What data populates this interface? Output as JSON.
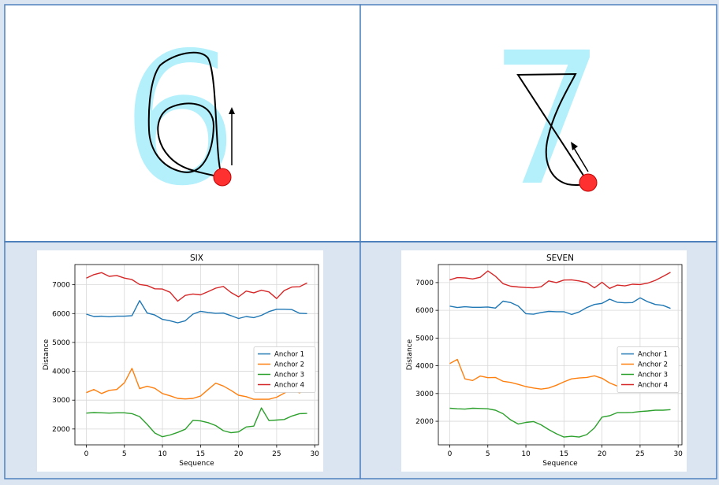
{
  "digits": [
    {
      "glyph": "6",
      "glyph_color": "#b3f0fb",
      "stroke_color": "#000000",
      "start_marker_color": "#ff3030"
    },
    {
      "glyph": "7",
      "glyph_color": "#b3f0fb",
      "stroke_color": "#000000",
      "start_marker_color": "#ff3030"
    }
  ],
  "chart_data": [
    {
      "type": "line",
      "title": "SIX",
      "xlabel": "Sequence",
      "ylabel": "Distance",
      "x": [
        0,
        1,
        2,
        3,
        4,
        5,
        6,
        7,
        8,
        9,
        10,
        11,
        12,
        13,
        14,
        15,
        16,
        17,
        18,
        19,
        20,
        21,
        22,
        23,
        24,
        25,
        26,
        27,
        28,
        29
      ],
      "xlim": [
        -1.5,
        30.5
      ],
      "ylim": [
        1450,
        7700
      ],
      "xticks": [
        0,
        5,
        10,
        15,
        20,
        25,
        30
      ],
      "yticks": [
        2000,
        3000,
        4000,
        5000,
        6000,
        7000
      ],
      "grid": true,
      "legend_position": "center-right",
      "series": [
        {
          "name": "Anchor 1",
          "color": "#1f77b4",
          "values": [
            5980,
            5900,
            5910,
            5890,
            5910,
            5910,
            5930,
            6450,
            6020,
            5950,
            5800,
            5750,
            5680,
            5750,
            5980,
            6080,
            6040,
            6010,
            6020,
            5930,
            5830,
            5900,
            5860,
            5940,
            6070,
            6150,
            6150,
            6140,
            6010,
            6000
          ]
        },
        {
          "name": "Anchor 2",
          "color": "#ff7f0e",
          "values": [
            3260,
            3370,
            3230,
            3340,
            3370,
            3600,
            4100,
            3400,
            3480,
            3410,
            3230,
            3150,
            3060,
            3040,
            3060,
            3140,
            3370,
            3590,
            3490,
            3340,
            3170,
            3120,
            3030,
            3030,
            3030,
            3100,
            3240,
            3400,
            3250,
            3430
          ]
        },
        {
          "name": "Anchor 3",
          "color": "#2ca02c",
          "values": [
            2550,
            2570,
            2560,
            2550,
            2560,
            2560,
            2530,
            2430,
            2160,
            1860,
            1730,
            1790,
            1880,
            1990,
            2300,
            2280,
            2220,
            2120,
            1940,
            1870,
            1900,
            2070,
            2100,
            2730,
            2290,
            2310,
            2330,
            2450,
            2530,
            2540
          ]
        },
        {
          "name": "Anchor 4",
          "color": "#d62728",
          "values": [
            7230,
            7350,
            7420,
            7290,
            7320,
            7230,
            7180,
            7010,
            6970,
            6860,
            6850,
            6740,
            6430,
            6630,
            6680,
            6650,
            6760,
            6880,
            6940,
            6730,
            6580,
            6780,
            6720,
            6810,
            6750,
            6520,
            6800,
            6920,
            6930,
            7060
          ]
        }
      ]
    },
    {
      "type": "line",
      "title": "SEVEN",
      "xlabel": "Sequence",
      "ylabel": "Distance",
      "x": [
        0,
        1,
        2,
        3,
        4,
        5,
        6,
        7,
        8,
        9,
        10,
        11,
        12,
        13,
        14,
        15,
        16,
        17,
        18,
        19,
        20,
        21,
        22,
        23,
        24,
        25,
        26,
        27,
        28,
        29
      ],
      "xlim": [
        -1.5,
        30.5
      ],
      "ylim": [
        1150,
        7650
      ],
      "xticks": [
        0,
        5,
        10,
        15,
        20,
        25,
        30
      ],
      "yticks": [
        2000,
        3000,
        4000,
        5000,
        6000,
        7000
      ],
      "grid": true,
      "legend_position": "center-right",
      "series": [
        {
          "name": "Anchor 1",
          "color": "#1f77b4",
          "values": [
            6150,
            6100,
            6130,
            6110,
            6110,
            6120,
            6080,
            6330,
            6280,
            6150,
            5880,
            5860,
            5920,
            5960,
            5950,
            5950,
            5850,
            5940,
            6100,
            6210,
            6250,
            6400,
            6290,
            6270,
            6280,
            6450,
            6310,
            6210,
            6180,
            6070
          ]
        },
        {
          "name": "Anchor 2",
          "color": "#ff7f0e",
          "values": [
            4080,
            4230,
            3530,
            3470,
            3630,
            3570,
            3580,
            3440,
            3400,
            3330,
            3250,
            3200,
            3160,
            3200,
            3300,
            3420,
            3530,
            3560,
            3580,
            3640,
            3550,
            3380,
            3270,
            3260,
            3220,
            3260,
            3370,
            3510,
            3430,
            3510
          ]
        },
        {
          "name": "Anchor 3",
          "color": "#2ca02c",
          "values": [
            2470,
            2450,
            2440,
            2470,
            2460,
            2450,
            2400,
            2270,
            2050,
            1900,
            1960,
            1990,
            1870,
            1700,
            1550,
            1430,
            1460,
            1430,
            1520,
            1760,
            2150,
            2200,
            2310,
            2310,
            2320,
            2350,
            2370,
            2400,
            2400,
            2420
          ]
        },
        {
          "name": "Anchor 4",
          "color": "#d62728",
          "values": [
            7100,
            7180,
            7170,
            7130,
            7190,
            7420,
            7230,
            6960,
            6870,
            6840,
            6820,
            6810,
            6850,
            7060,
            7000,
            7090,
            7100,
            7060,
            7000,
            6810,
            7010,
            6790,
            6910,
            6880,
            6940,
            6930,
            6980,
            7080,
            7220,
            7370
          ]
        }
      ]
    }
  ]
}
